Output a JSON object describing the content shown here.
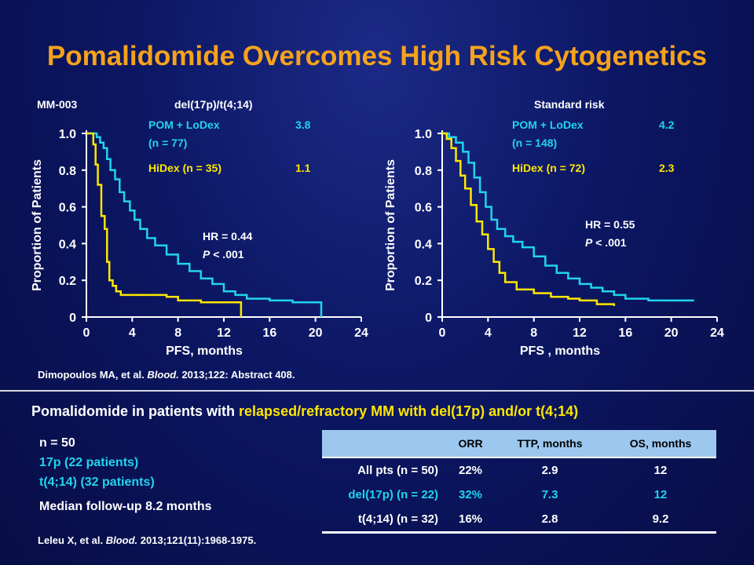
{
  "title": "Pomalidomide Overcomes High Risk Cytogenetics",
  "chart_data": [
    {
      "type": "line",
      "study_label": "MM-003",
      "title": "del(17p)/t(4;14)",
      "xlabel": "PFS, months",
      "ylabel": "Proportion of Patients",
      "xlim": [
        0,
        24
      ],
      "ylim": [
        0,
        1.0
      ],
      "xticks": [
        "0",
        "4",
        "8",
        "12",
        "16",
        "20",
        "24"
      ],
      "yticks": [
        "0",
        "0.2",
        "0.4",
        "0.6",
        "0.8",
        "1.0"
      ],
      "legend": [
        {
          "label": "POM + LoDex",
          "label2": "(n = 77)",
          "value": "3.8",
          "color": "#21d4ee"
        },
        {
          "label": "HiDex (n = 35)",
          "label2": "",
          "value": "1.1",
          "color": "#ffe600"
        }
      ],
      "hr_text": "HR = 0.44",
      "p_label": "P",
      "p_value": " < .001",
      "series": [
        {
          "name": "POM + LoDex",
          "color": "#21d4ee",
          "x": [
            0,
            0.5,
            0.9,
            1.2,
            1.5,
            1.8,
            2.1,
            2.5,
            2.9,
            3.3,
            3.8,
            4.2,
            4.7,
            5.3,
            6.0,
            7.0,
            8.0,
            9.0,
            10.0,
            11.0,
            12.0,
            13.0,
            14.0,
            16.0,
            18.0,
            20.5,
            20.5
          ],
          "y": [
            1.0,
            1.0,
            0.98,
            0.95,
            0.92,
            0.86,
            0.8,
            0.75,
            0.68,
            0.63,
            0.58,
            0.53,
            0.48,
            0.43,
            0.39,
            0.34,
            0.29,
            0.25,
            0.21,
            0.18,
            0.14,
            0.12,
            0.1,
            0.09,
            0.08,
            0.05,
            0.0
          ]
        },
        {
          "name": "HiDex",
          "color": "#ffe600",
          "x": [
            0,
            0.3,
            0.6,
            0.8,
            1.0,
            1.3,
            1.6,
            1.8,
            2.0,
            2.3,
            2.6,
            3.0,
            4.0,
            5.0,
            7.0,
            8.0,
            10.0,
            12.0,
            13.5,
            13.5
          ],
          "y": [
            1.0,
            1.0,
            0.94,
            0.83,
            0.72,
            0.55,
            0.48,
            0.3,
            0.2,
            0.17,
            0.14,
            0.12,
            0.12,
            0.12,
            0.11,
            0.09,
            0.08,
            0.08,
            0.08,
            0.0
          ]
        }
      ]
    },
    {
      "type": "line",
      "title": "Standard risk",
      "xlabel": "PFS , months",
      "ylabel": "Proportion of Patients",
      "xlim": [
        0,
        24
      ],
      "ylim": [
        0,
        1.0
      ],
      "xticks": [
        "0",
        "4",
        "8",
        "12",
        "16",
        "20",
        "24"
      ],
      "yticks": [
        "0",
        "0.2",
        "0.4",
        "0.6",
        "0.8",
        "1.0"
      ],
      "legend": [
        {
          "label": "POM + LoDex",
          "label2": "(n = 148)",
          "value": "4.2",
          "color": "#21d4ee"
        },
        {
          "label": "HiDex (n = 72)",
          "label2": "",
          "value": "2.3",
          "color": "#ffe600"
        }
      ],
      "hr_text": "HR = 0.55",
      "p_label": "P",
      "p_value": " < .001",
      "series": [
        {
          "name": "POM + LoDex",
          "color": "#21d4ee",
          "x": [
            0,
            0.6,
            1.2,
            1.8,
            2.3,
            2.8,
            3.3,
            3.8,
            4.3,
            4.8,
            5.5,
            6.2,
            7.0,
            8.0,
            9.0,
            10.0,
            11.0,
            12.0,
            13.0,
            14.0,
            15.0,
            16.0,
            18.0,
            20.0,
            22.0
          ],
          "y": [
            1.0,
            0.98,
            0.95,
            0.9,
            0.84,
            0.76,
            0.68,
            0.6,
            0.53,
            0.48,
            0.44,
            0.41,
            0.38,
            0.33,
            0.28,
            0.24,
            0.21,
            0.18,
            0.16,
            0.14,
            0.12,
            0.1,
            0.09,
            0.09,
            0.09
          ]
        },
        {
          "name": "HiDex",
          "color": "#ffe600",
          "x": [
            0,
            0.4,
            0.8,
            1.2,
            1.6,
            2.0,
            2.5,
            3.0,
            3.5,
            4.0,
            4.5,
            5.0,
            5.5,
            6.5,
            8.0,
            9.5,
            11.0,
            12.0,
            13.5,
            15.0
          ],
          "y": [
            1.0,
            0.97,
            0.92,
            0.85,
            0.77,
            0.7,
            0.61,
            0.52,
            0.45,
            0.37,
            0.3,
            0.24,
            0.19,
            0.15,
            0.13,
            0.11,
            0.1,
            0.09,
            0.07,
            0.06
          ]
        }
      ]
    }
  ],
  "citation_top": {
    "pre": "Dimopoulos MA, et al. ",
    "journal": "Blood.",
    "post": " 2013;122: Abstract 408."
  },
  "subheading": {
    "pre": "Pomalidomide in patients with ",
    "highlight": "relapsed/refractory MM with del(17p) and/or t(4;14)"
  },
  "stats": {
    "n": "n = 50",
    "del17p": "17p (22 patients)",
    "t414": "t(4;14) (32 patients)",
    "followup": "Median follow-up  8.2 months"
  },
  "table": {
    "headers": [
      "",
      "ORR",
      "TTP, months",
      "OS, months"
    ],
    "rows": [
      [
        "All pts (n = 50)",
        "22%",
        "2.9",
        "12"
      ],
      [
        "del(17p) (n = 22)",
        "32%",
        "7.3",
        "12"
      ],
      [
        "t(4;14) (n = 32)",
        "16%",
        "2.8",
        "9.2"
      ]
    ]
  },
  "citation_bottom": {
    "pre": "Leleu X, et al. ",
    "journal": "Blood.",
    "post": " 2013;121(11):1968-1975."
  }
}
